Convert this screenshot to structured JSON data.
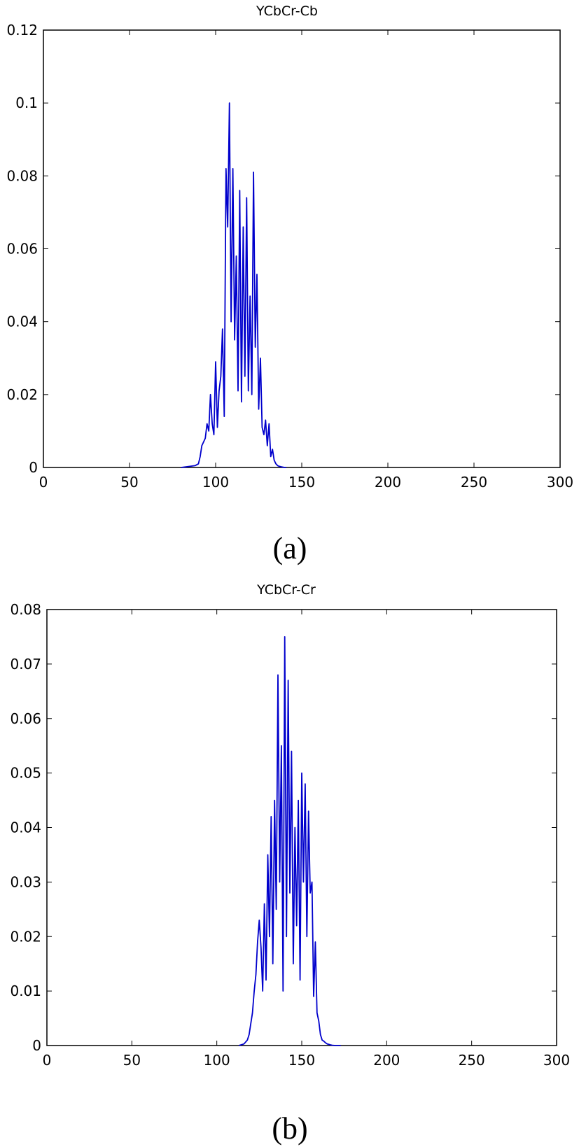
{
  "chart_data": [
    {
      "type": "line",
      "title": "YCbCr-Cb",
      "caption": "(a)",
      "xlim": [
        0,
        300
      ],
      "ylim": [
        0,
        0.12
      ],
      "xticks": [
        0,
        50,
        100,
        150,
        200,
        250,
        300
      ],
      "yticks": [
        0,
        0.02,
        0.04,
        0.06,
        0.08,
        0.1,
        0.12
      ],
      "xtick_labels": [
        "0",
        "50",
        "100",
        "150",
        "200",
        "250",
        "300"
      ],
      "ytick_labels": [
        "0",
        "0.02",
        "0.04",
        "0.06",
        "0.08",
        "0.1",
        "0.12"
      ],
      "grid": false,
      "color": "#0000cc",
      "series": [
        {
          "x": [
            80,
            85,
            88,
            90,
            91,
            92,
            93,
            94,
            95,
            96,
            97,
            98,
            99,
            100,
            101,
            102,
            103,
            104,
            105,
            106,
            107,
            108,
            109,
            110,
            111,
            112,
            113,
            114,
            115,
            116,
            117,
            118,
            119,
            120,
            121,
            122,
            123,
            124,
            125,
            126,
            127,
            128,
            129,
            130,
            131,
            132,
            133,
            134,
            135,
            136,
            137,
            138,
            139,
            140,
            141
          ],
          "y": [
            0,
            0.0003,
            0.0005,
            0.001,
            0.003,
            0.006,
            0.007,
            0.008,
            0.012,
            0.01,
            0.02,
            0.012,
            0.009,
            0.029,
            0.011,
            0.021,
            0.025,
            0.038,
            0.014,
            0.082,
            0.066,
            0.1,
            0.04,
            0.082,
            0.035,
            0.058,
            0.021,
            0.076,
            0.018,
            0.066,
            0.025,
            0.074,
            0.021,
            0.047,
            0.02,
            0.081,
            0.033,
            0.053,
            0.016,
            0.03,
            0.011,
            0.009,
            0.013,
            0.006,
            0.012,
            0.003,
            0.005,
            0.002,
            0.001,
            0.0005,
            0.0003,
            0.0002,
            0.0001,
            0,
            0
          ]
        }
      ]
    },
    {
      "type": "line",
      "title": "YCbCr-Cr",
      "caption": "(b)",
      "xlim": [
        0,
        300
      ],
      "ylim": [
        0,
        0.08
      ],
      "xticks": [
        0,
        50,
        100,
        150,
        200,
        250,
        300
      ],
      "yticks": [
        0,
        0.01,
        0.02,
        0.03,
        0.04,
        0.05,
        0.06,
        0.07,
        0.08
      ],
      "xtick_labels": [
        "0",
        "50",
        "100",
        "150",
        "200",
        "250",
        "300"
      ],
      "ytick_labels": [
        "0",
        "0.01",
        "0.02",
        "0.03",
        "0.04",
        "0.05",
        "0.06",
        "0.07",
        "0.08"
      ],
      "grid": false,
      "color": "#0000cc",
      "series": [
        {
          "x": [
            113,
            116,
            118,
            119,
            120,
            121,
            122,
            123,
            124,
            125,
            126,
            127,
            128,
            129,
            130,
            131,
            132,
            133,
            134,
            135,
            136,
            137,
            138,
            139,
            140,
            141,
            142,
            143,
            144,
            145,
            146,
            147,
            148,
            149,
            150,
            151,
            152,
            153,
            154,
            155,
            156,
            157,
            158,
            159,
            160,
            161,
            162,
            163,
            164,
            165,
            166,
            167,
            168,
            170,
            173
          ],
          "y": [
            0,
            0.0003,
            0.001,
            0.002,
            0.004,
            0.006,
            0.01,
            0.013,
            0.019,
            0.023,
            0.018,
            0.01,
            0.026,
            0.012,
            0.035,
            0.02,
            0.042,
            0.015,
            0.045,
            0.025,
            0.068,
            0.03,
            0.055,
            0.01,
            0.075,
            0.02,
            0.067,
            0.028,
            0.054,
            0.015,
            0.04,
            0.022,
            0.045,
            0.012,
            0.05,
            0.03,
            0.048,
            0.02,
            0.043,
            0.028,
            0.03,
            0.009,
            0.019,
            0.006,
            0.0045,
            0.002,
            0.001,
            0.0008,
            0.0005,
            0.0003,
            0.0002,
            0.0001,
            5e-05,
            0,
            0
          ]
        }
      ]
    }
  ]
}
